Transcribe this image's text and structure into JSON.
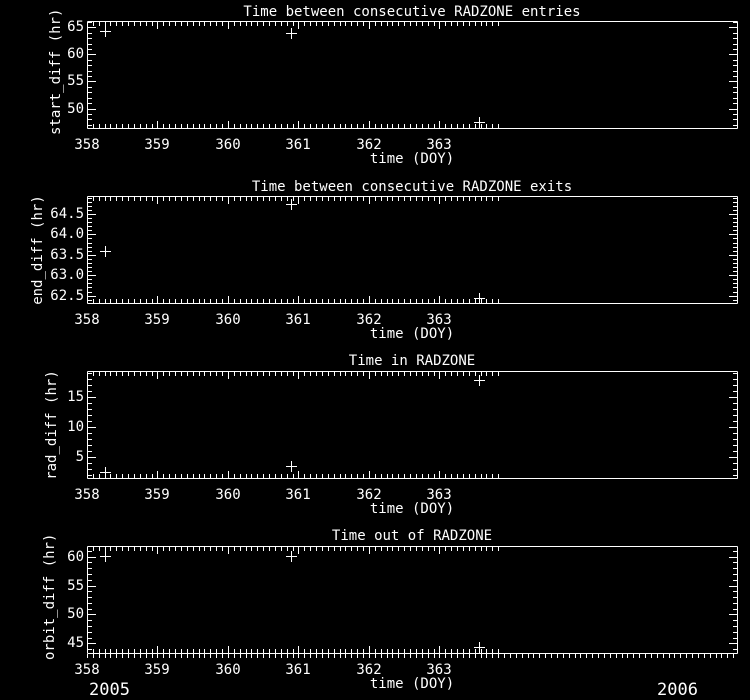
{
  "page": {
    "background": "#000000",
    "foreground": "#ffffff"
  },
  "footer": {
    "year_left": "2005",
    "year_right": "2006"
  },
  "chart_data": [
    {
      "type": "scatter",
      "title": "Time between consecutive RADZONE entries",
      "xlabel": "time (DOY)",
      "ylabel": "start_diff (hr)",
      "marker": "+",
      "x": [
        358.25,
        360.9,
        363.56
      ],
      "y": [
        64.4,
        64.0,
        47.5
      ],
      "xlim": [
        358,
        367.22
      ],
      "ylim": [
        46.4,
        66.16
      ],
      "xticks": [
        358,
        359,
        360,
        361,
        362,
        363
      ],
      "xtick_labels": [
        "358",
        "359",
        "360",
        "361",
        "362",
        "363"
      ],
      "x_minor_step": 0.0833333,
      "x_tick_max": 363.84,
      "yticks": [
        50,
        55,
        60,
        65
      ],
      "ytick_labels": [
        "50",
        "55",
        "60",
        "65"
      ],
      "y_minor_step": 1,
      "grid": false,
      "legend": false,
      "year_axis": false
    },
    {
      "type": "scatter",
      "title": "Time between consecutive RADZONE exits",
      "xlabel": "time (DOY)",
      "ylabel": "end_diff (hr)",
      "marker": "+",
      "x": [
        358.25,
        360.9,
        363.56
      ],
      "y": [
        63.6,
        64.75,
        62.45
      ],
      "xlim": [
        358,
        367.22
      ],
      "ylim": [
        62.32,
        64.94
      ],
      "xticks": [
        358,
        359,
        360,
        361,
        362,
        363
      ],
      "xtick_labels": [
        "358",
        "359",
        "360",
        "361",
        "362",
        "363"
      ],
      "x_minor_step": 0.0833333,
      "x_tick_max": 363.84,
      "yticks": [
        62.5,
        63.0,
        63.5,
        64.0,
        64.5
      ],
      "ytick_labels": [
        "62.5",
        "63.0",
        "63.5",
        "64.0",
        "64.5"
      ],
      "y_minor_step": 0.1,
      "grid": false,
      "legend": false,
      "year_axis": false
    },
    {
      "type": "scatter",
      "title": "Time in RADZONE",
      "xlabel": "time (DOY)",
      "ylabel": "rad_diff (hr)",
      "marker": "+",
      "x": [
        358.25,
        360.9,
        363.56
      ],
      "y": [
        2.6,
        3.5,
        17.9
      ],
      "xlim": [
        358,
        367.22
      ],
      "ylim": [
        1.55,
        19.38
      ],
      "xticks": [
        358,
        359,
        360,
        361,
        362,
        363
      ],
      "xtick_labels": [
        "358",
        "359",
        "360",
        "361",
        "362",
        "363"
      ],
      "x_minor_step": 0.0833333,
      "x_tick_max": 363.84,
      "yticks": [
        5,
        10,
        15
      ],
      "ytick_labels": [
        "5",
        "10",
        "15"
      ],
      "y_minor_step": 1,
      "grid": false,
      "legend": false,
      "year_axis": false
    },
    {
      "type": "scatter",
      "title": "Time out of RADZONE",
      "xlabel": "time (DOY)",
      "ylabel": "orbit_diff (hr)",
      "marker": "+",
      "x": [
        358.25,
        360.9,
        363.56
      ],
      "y": [
        60.2,
        60.2,
        44.4
      ],
      "xlim": [
        358,
        367.22
      ],
      "ylim": [
        43.32,
        61.85
      ],
      "xticks": [
        358,
        359,
        360,
        361,
        362,
        363
      ],
      "xtick_labels": [
        "358",
        "359",
        "360",
        "361",
        "362",
        "363"
      ],
      "x_minor_step": 0.0833333,
      "x_tick_max": 363.84,
      "yticks": [
        45,
        50,
        55,
        60
      ],
      "ytick_labels": [
        "45",
        "50",
        "55",
        "60"
      ],
      "y_minor_step": 1,
      "grid": false,
      "legend": false,
      "year_axis": true
    }
  ]
}
